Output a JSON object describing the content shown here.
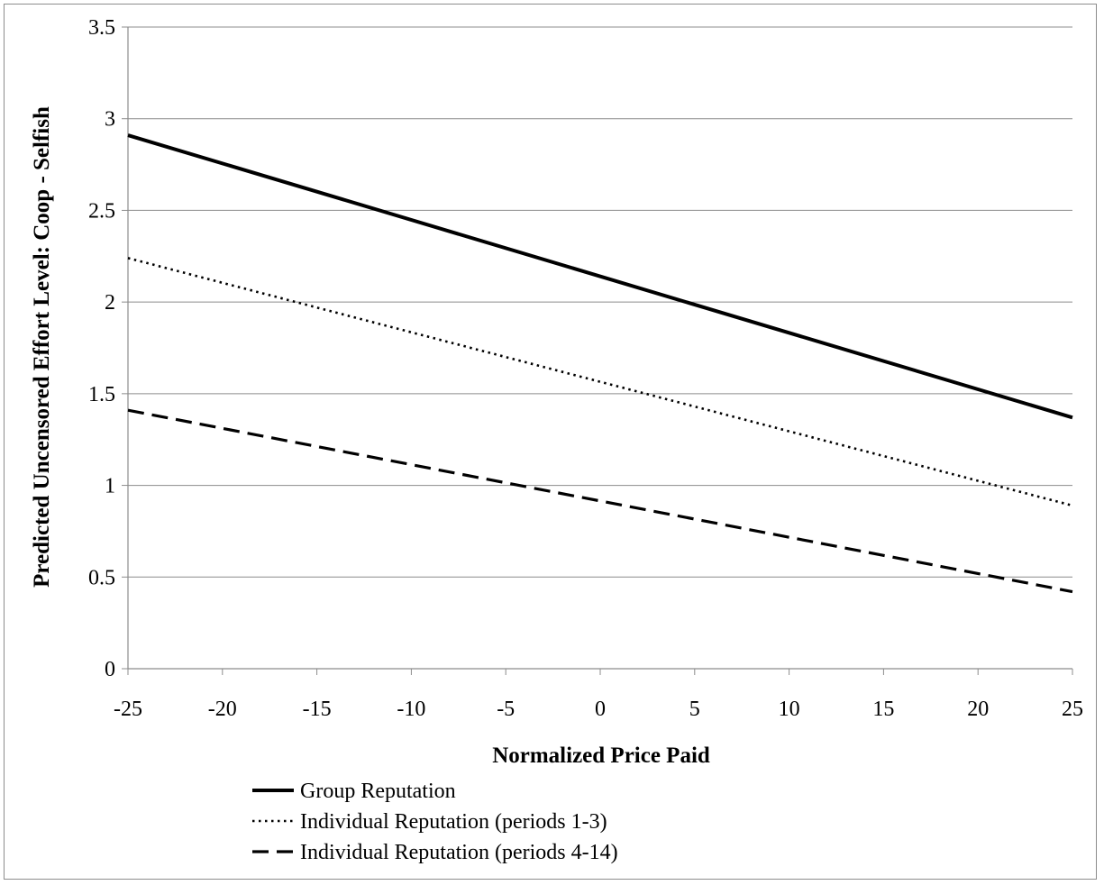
{
  "chart_data": {
    "type": "line",
    "title": "",
    "xlabel": "Normalized Price Paid",
    "ylabel": "Predicted Uncensored Effort Level: Coop - Selfish",
    "xlim": [
      -25,
      25
    ],
    "ylim": [
      0,
      3.5
    ],
    "x_ticks": [
      "-25",
      "-20",
      "-15",
      "-10",
      "-5",
      "0",
      "5",
      "10",
      "15",
      "20",
      "25"
    ],
    "y_ticks": [
      "0",
      "0.5",
      "1",
      "1.5",
      "2",
      "2.5",
      "3",
      "3.5"
    ],
    "grid": "horizontal",
    "legend_position": "bottom",
    "series": [
      {
        "name": "Group Reputation",
        "style": "solid",
        "x": [
          -25,
          25
        ],
        "y": [
          2.91,
          1.37
        ]
      },
      {
        "name": "Individual Reputation (periods 1-3)",
        "style": "dotted",
        "x": [
          -25,
          25
        ],
        "y": [
          2.24,
          0.89
        ]
      },
      {
        "name": "Individual Reputation (periods 4-14)",
        "style": "dashed",
        "x": [
          -25,
          25
        ],
        "y": [
          1.41,
          0.42
        ]
      }
    ]
  }
}
